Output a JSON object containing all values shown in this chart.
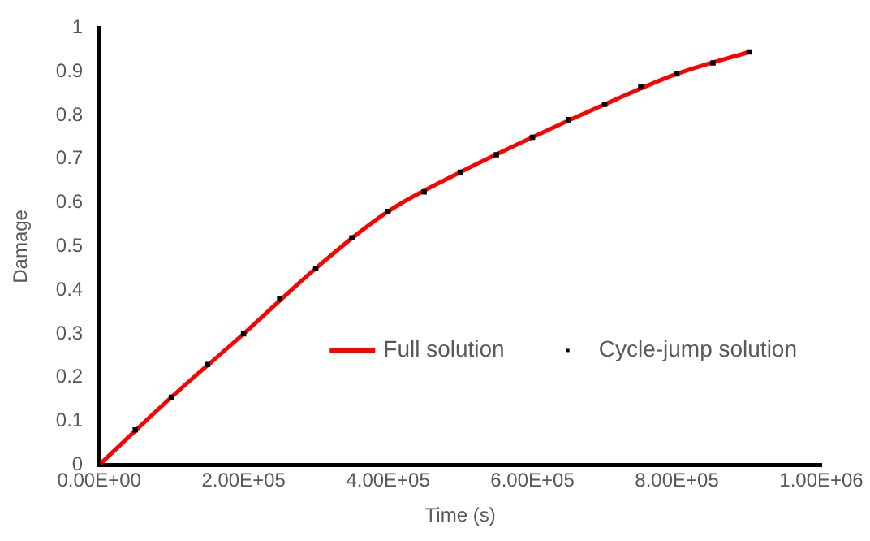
{
  "chart_data": {
    "type": "line",
    "xlabel": "Time (s)",
    "ylabel": "Damage",
    "xlim": [
      0,
      1000000
    ],
    "xticks": [
      {
        "value": 0,
        "label": "0.00E+00"
      },
      {
        "value": 200000,
        "label": "2.00E+05"
      },
      {
        "value": 400000,
        "label": "4.00E+05"
      },
      {
        "value": 600000,
        "label": "6.00E+05"
      },
      {
        "value": 800000,
        "label": "8.00E+05"
      },
      {
        "value": 1000000,
        "label": "1.00E+06"
      }
    ],
    "ylim": [
      0,
      1
    ],
    "yticks": [
      0,
      0.1,
      0.2,
      0.3,
      0.4,
      0.5,
      0.6,
      0.7,
      0.8,
      0.9,
      1
    ],
    "grid": false,
    "legend": "right",
    "series": [
      {
        "name": "Full solution",
        "type": "line",
        "color": "#ff0000",
        "marker": "none",
        "x": [
          0,
          100000,
          200000,
          300000,
          400000,
          500000,
          600000,
          700000,
          800000,
          900000
        ],
        "values": [
          0,
          0.155,
          0.3,
          0.45,
          0.58,
          0.67,
          0.75,
          0.825,
          0.895,
          0.945
        ]
      },
      {
        "name": "Cycle-jump solution",
        "type": "scatter",
        "color": "#000000",
        "marker": "square",
        "x": [
          0,
          50000,
          100000,
          150000,
          200000,
          250000,
          300000,
          350000,
          400000,
          450000,
          500000,
          550000,
          600000,
          650000,
          700000,
          750000,
          800000,
          850000,
          900000
        ],
        "values": [
          0,
          0.08,
          0.155,
          0.23,
          0.3,
          0.38,
          0.45,
          0.52,
          0.58,
          0.625,
          0.67,
          0.71,
          0.75,
          0.79,
          0.825,
          0.865,
          0.895,
          0.92,
          0.945
        ]
      }
    ]
  }
}
